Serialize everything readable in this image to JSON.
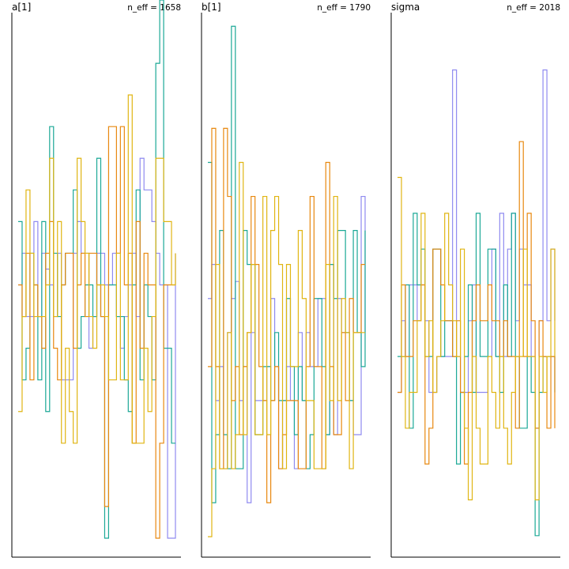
{
  "chart_data": [
    {
      "type": "line",
      "title": "a[1]",
      "annotation": "n_eff = 1658",
      "grid": false,
      "legend": "none",
      "x": [
        0,
        1,
        2,
        3,
        4,
        5,
        6,
        7,
        8,
        9,
        10,
        11,
        12,
        13,
        14,
        15,
        16,
        17,
        18,
        19,
        20,
        21,
        22,
        23,
        24,
        25,
        26,
        27,
        28,
        29,
        30,
        31,
        32,
        33,
        34,
        35,
        36,
        37,
        38,
        39,
        40
      ],
      "series": [
        {
          "color": "#8f8af0",
          "values": [
            0.0,
            1.0,
            -1.0,
            -1.0,
            2.0,
            -1.0,
            1.0,
            0.5,
            0.0,
            -1.0,
            1.0,
            -3.0,
            -3.0,
            -3.0,
            1.0,
            2.0,
            1.0,
            1.0,
            -2.0,
            -1.0,
            1.0,
            1.0,
            0.0,
            0.0,
            1.0,
            -1.0,
            -2.0,
            -1.0,
            0.0,
            1.0,
            -1.0,
            4.0,
            3.0,
            3.0,
            2.0,
            1.0,
            0.0,
            0.0,
            -8.0,
            -8.0,
            1.0
          ]
        },
        {
          "color": "#1ba896",
          "values": [
            2.0,
            -3.0,
            -2.0,
            1.0,
            0.0,
            -3.0,
            2.0,
            -4.0,
            5.0,
            1.0,
            -1.0,
            0.0,
            1.0,
            1.0,
            3.0,
            -2.0,
            -1.0,
            0.0,
            0.0,
            -1.0,
            4.0,
            -1.0,
            -8.0,
            0.0,
            0.0,
            -1.0,
            -1.0,
            -3.0,
            -4.0,
            0.0,
            3.0,
            -3.0,
            0.0,
            -1.0,
            -3.0,
            7.0,
            9.0,
            -2.0,
            -2.0,
            -5.0,
            -5.0
          ]
        },
        {
          "color": "#e8880f",
          "values": [
            0.0,
            -1.0,
            1.0,
            -3.0,
            0.0,
            -1.0,
            -2.0,
            1.0,
            2.0,
            -2.0,
            -3.0,
            0.0,
            1.0,
            1.0,
            -2.0,
            0.0,
            1.0,
            -1.0,
            1.0,
            1.0,
            0.0,
            -1.0,
            -7.0,
            5.0,
            5.0,
            1.0,
            5.0,
            0.0,
            1.0,
            -5.0,
            2.0,
            -2.0,
            1.0,
            0.0,
            0.0,
            -8.0,
            -5.0,
            0.0,
            0.0,
            0.0,
            0.0
          ]
        },
        {
          "color": "#e0b512",
          "values": [
            -4.0,
            -1.0,
            3.0,
            1.0,
            -1.0,
            -1.0,
            -1.0,
            0.0,
            4.0,
            -1.0,
            2.0,
            -5.0,
            -2.0,
            -4.0,
            -5.0,
            4.0,
            2.0,
            1.0,
            -1.0,
            -2.0,
            0.0,
            0.0,
            -1.0,
            -3.0,
            -3.0,
            1.0,
            -3.0,
            -3.0,
            6.0,
            -5.0,
            -5.0,
            -5.0,
            -2.0,
            -4.0,
            -1.0,
            4.0,
            4.0,
            2.0,
            2.0,
            0.0,
            1.0
          ]
        }
      ],
      "ylim": [
        -8.6,
        8.6
      ]
    },
    {
      "type": "line",
      "title": "b[1]",
      "annotation": "n_eff = 1790",
      "grid": false,
      "legend": "none",
      "x": [
        0,
        1,
        2,
        3,
        4,
        5,
        6,
        7,
        8,
        9,
        10,
        11,
        12,
        13,
        14,
        15,
        16,
        17,
        18,
        19,
        20,
        21,
        22,
        23,
        24,
        25,
        26,
        27,
        28,
        29,
        30,
        31,
        32,
        33,
        34,
        35,
        36,
        37,
        38,
        39,
        40
      ],
      "series": [
        {
          "color": "#8f8af0",
          "values": [
            0.0,
            1.0,
            -3.0,
            -2.0,
            -5.0,
            -1.0,
            0.0,
            0.5,
            -3.0,
            -2.0,
            -6.0,
            -1.0,
            -3.0,
            -3.0,
            -3.0,
            -2.0,
            0.0,
            -2.0,
            -5.0,
            -3.0,
            -2.0,
            -3.0,
            -5.0,
            -1.0,
            -3.0,
            -1.0,
            -2.0,
            -2.0,
            0.0,
            0.0,
            -4.0,
            1.0,
            -4.0,
            0.0,
            -1.0,
            -1.0,
            -3.0,
            -4.0,
            -4.0,
            3.0,
            -1.0
          ]
        },
        {
          "color": "#1ba896",
          "values": [
            4.0,
            -6.0,
            -4.0,
            2.0,
            -4.0,
            -5.0,
            8.0,
            -5.0,
            -5.0,
            2.0,
            1.0,
            1.0,
            -4.0,
            -4.0,
            -2.0,
            -2.0,
            -3.0,
            -1.0,
            -3.0,
            -3.0,
            0.0,
            -2.0,
            -4.0,
            -2.0,
            -3.0,
            -5.0,
            -4.0,
            0.0,
            0.0,
            -2.0,
            -4.0,
            1.0,
            0.0,
            2.0,
            2.0,
            -1.0,
            -3.0,
            2.0,
            -1.0,
            -2.0,
            2.0
          ]
        },
        {
          "color": "#e8880f",
          "values": [
            -2.0,
            5.0,
            -2.0,
            -5.0,
            5.0,
            3.0,
            -3.0,
            -2.0,
            -4.0,
            -2.0,
            -1.0,
            3.0,
            1.0,
            -2.0,
            -3.0,
            -6.0,
            -3.0,
            -2.0,
            -5.0,
            -4.0,
            -3.0,
            -3.0,
            -3.0,
            -5.0,
            -5.0,
            -2.0,
            3.0,
            -2.0,
            -2.0,
            -5.0,
            4.0,
            -2.0,
            -4.0,
            -4.0,
            -1.0,
            -3.0,
            0.0,
            -1.0,
            -1.0,
            1.0,
            1.0
          ]
        },
        {
          "color": "#e0b512",
          "values": [
            -7.0,
            -5.0,
            1.0,
            -5.0,
            -5.0,
            -1.0,
            -5.0,
            -4.0,
            4.0,
            -4.0,
            -1.0,
            1.0,
            -4.0,
            -4.0,
            3.0,
            -4.0,
            2.0,
            3.0,
            1.0,
            -5.0,
            1.0,
            -2.0,
            -2.0,
            2.0,
            0.0,
            -3.0,
            -3.0,
            -5.0,
            -5.0,
            -5.0,
            1.0,
            -3.0,
            3.0,
            -3.0,
            0.0,
            -1.0,
            -5.0,
            -1.0,
            -1.0,
            -1.0,
            -1.0
          ]
        }
      ],
      "ylim": [
        -7.6,
        8.4
      ]
    },
    {
      "type": "line",
      "title": "sigma",
      "annotation": "n_eff = 2018",
      "grid": false,
      "legend": "none",
      "x": [
        0,
        1,
        2,
        3,
        4,
        5,
        6,
        7,
        8,
        9,
        10,
        11,
        12,
        13,
        14,
        15,
        16,
        17,
        18,
        19,
        20,
        21,
        22,
        23,
        24,
        25,
        26,
        27,
        28,
        29,
        30,
        31,
        32,
        33,
        34,
        35,
        36,
        37,
        38,
        39,
        40
      ],
      "series": [
        {
          "color": "#8f8af0",
          "values": [
            -2.0,
            0.0,
            -1.0,
            1.0,
            1.0,
            0.0,
            1.0,
            0.0,
            -2.0,
            -2.0,
            -1.0,
            -1.0,
            -1.0,
            -1.0,
            7.0,
            -1.0,
            -2.0,
            -2.0,
            0.0,
            1.0,
            -2.0,
            -2.0,
            -2.0,
            -1.0,
            2.0,
            -1.0,
            3.0,
            -1.0,
            2.0,
            3.0,
            0.0,
            2.0,
            1.0,
            1.0,
            -1.0,
            -3.0,
            0.0,
            7.0,
            0.0,
            2.0,
            0.0
          ]
        },
        {
          "color": "#1ba896",
          "values": [
            -1.0,
            -1.0,
            1.0,
            -3.0,
            3.0,
            1.0,
            2.0,
            -1.0,
            -1.0,
            2.0,
            2.0,
            -1.0,
            0.0,
            0.0,
            -1.0,
            -4.0,
            -2.0,
            -1.0,
            1.0,
            -2.0,
            3.0,
            -1.0,
            -1.0,
            2.0,
            2.0,
            -1.0,
            -2.0,
            1.0,
            -1.0,
            3.0,
            -1.0,
            -3.0,
            -3.0,
            -1.0,
            -2.0,
            -6.0,
            -2.0,
            -1.0,
            -1.0,
            -1.0,
            -2.0
          ]
        },
        {
          "color": "#e8880f",
          "values": [
            -2.0,
            1.0,
            -1.0,
            -1.0,
            0.0,
            0.0,
            1.0,
            -4.0,
            -3.0,
            2.0,
            2.0,
            1.0,
            0.0,
            0.0,
            -1.0,
            0.0,
            -2.0,
            -4.0,
            -2.0,
            0.0,
            1.0,
            0.0,
            0.0,
            1.0,
            0.0,
            0.0,
            -1.0,
            0.0,
            -1.0,
            -1.0,
            -3.0,
            5.0,
            -1.0,
            3.0,
            0.0,
            -3.0,
            0.0,
            -1.0,
            -3.0,
            -1.0,
            -3.0
          ]
        },
        {
          "color": "#e0b512",
          "values": [
            4.0,
            -1.0,
            -3.0,
            -2.0,
            -2.0,
            0.0,
            3.0,
            -1.0,
            0.0,
            -2.0,
            -1.0,
            0.0,
            3.0,
            1.0,
            0.0,
            -1.0,
            2.0,
            -3.0,
            -5.0,
            -1.0,
            -3.0,
            -4.0,
            -4.0,
            -1.0,
            -2.0,
            -3.0,
            -1.0,
            -3.0,
            -4.0,
            -2.0,
            -1.0,
            -1.0,
            2.0,
            -1.0,
            -1.0,
            -5.0,
            -1.0,
            -2.0,
            -1.0,
            2.0,
            -1.0
          ]
        }
      ],
      "ylim": [
        -6.6,
        8.6
      ]
    }
  ],
  "colors": {
    "purple": "#8f8af0",
    "teal": "#1ba896",
    "orange": "#e8880f",
    "gold": "#e0b512",
    "axis": "#000000"
  }
}
